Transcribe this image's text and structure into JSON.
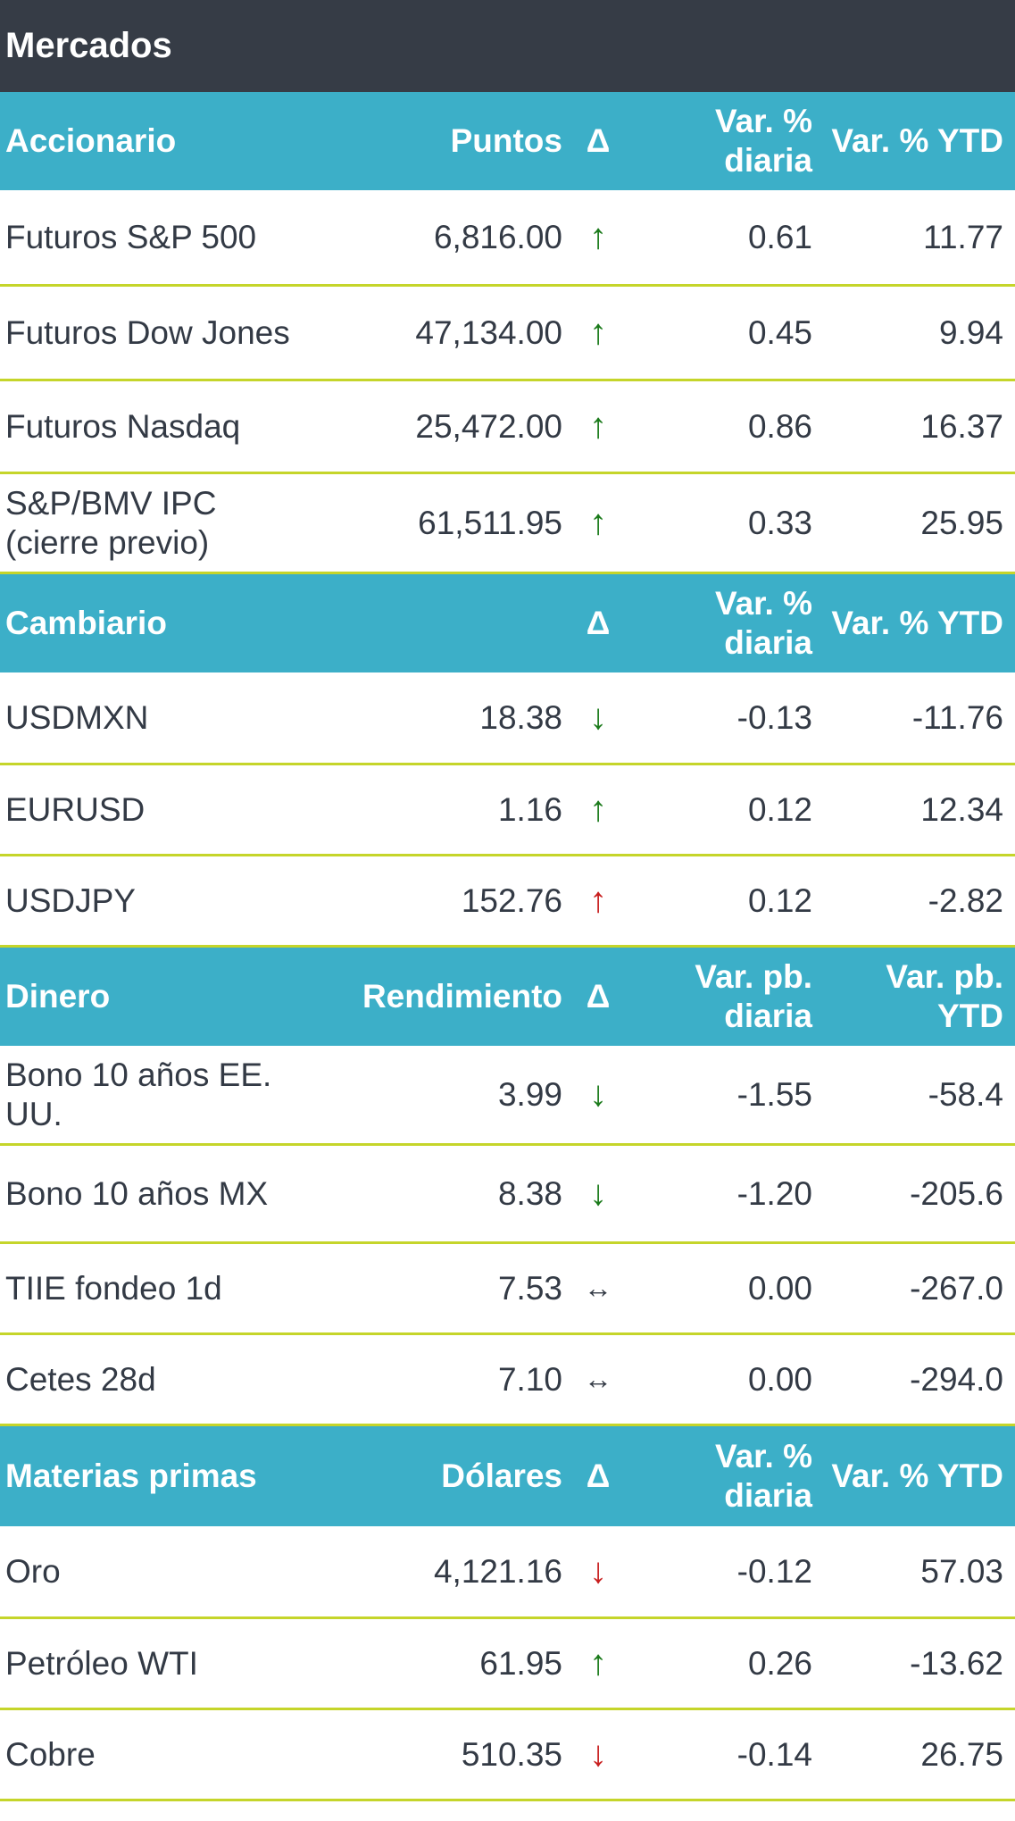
{
  "title": "Mercados",
  "arrows": {
    "up": "↑",
    "down": "↓",
    "flat": "↔"
  },
  "sections": [
    {
      "header": [
        "Accionario",
        "Puntos",
        "Δ",
        "Var. %\ndiaria",
        "Var. % YTD"
      ],
      "rows": [
        {
          "name": "Futuros S&P 500",
          "value": "6,816.00",
          "dir": "up",
          "color": "#1a7a1a",
          "d": "0.61",
          "ytd": "11.77"
        },
        {
          "name": "Futuros Dow Jones",
          "value": "47,134.00",
          "dir": "up",
          "color": "#1a7a1a",
          "d": "0.45",
          "ytd": "9.94"
        },
        {
          "name": "Futuros Nasdaq",
          "value": "25,472.00",
          "dir": "up",
          "color": "#1a7a1a",
          "d": "0.86",
          "ytd": "16.37"
        },
        {
          "name": "S&P/BMV IPC\n(cierre previo)",
          "value": "61,511.95",
          "dir": "up",
          "color": "#1a7a1a",
          "d": "0.33",
          "ytd": "25.95"
        }
      ]
    },
    {
      "header": [
        "Cambiario",
        "",
        "Δ",
        "Var. %\ndiaria",
        "Var. % YTD"
      ],
      "rows": [
        {
          "name": "USDMXN",
          "value": "18.38",
          "dir": "down",
          "color": "#1a7a1a",
          "d": "-0.13",
          "ytd": "-11.76"
        },
        {
          "name": "EURUSD",
          "value": "1.16",
          "dir": "up",
          "color": "#1a7a1a",
          "d": "0.12",
          "ytd": "12.34"
        },
        {
          "name": "USDJPY",
          "value": "152.76",
          "dir": "up",
          "color": "#c81e1e",
          "d": "0.12",
          "ytd": "-2.82"
        }
      ]
    },
    {
      "header": [
        "Dinero",
        "Rendimiento",
        "Δ",
        "Var. pb.\ndiaria",
        "Var. pb.\nYTD"
      ],
      "rows": [
        {
          "name": "Bono 10 años EE.\nUU.",
          "value": "3.99",
          "dir": "down",
          "color": "#1a7a1a",
          "d": "-1.55",
          "ytd": "-58.4"
        },
        {
          "name": "Bono 10 años MX",
          "value": "8.38",
          "dir": "down",
          "color": "#1a7a1a",
          "d": "-1.20",
          "ytd": "-205.6"
        },
        {
          "name": "TIIE fondeo 1d",
          "value": "7.53",
          "dir": "flat",
          "color": "#333a45",
          "d": "0.00",
          "ytd": "-267.0"
        },
        {
          "name": "Cetes 28d",
          "value": "7.10",
          "dir": "flat",
          "color": "#333a45",
          "d": "0.00",
          "ytd": "-294.0"
        }
      ]
    },
    {
      "header": [
        "Materias primas",
        "Dólares",
        "Δ",
        "Var. %\ndiaria",
        "Var. % YTD"
      ],
      "rows": [
        {
          "name": "Oro",
          "value": "4,121.16",
          "dir": "down",
          "color": "#c81e1e",
          "d": "-0.12",
          "ytd": "57.03"
        },
        {
          "name": "Petróleo WTI",
          "value": "61.95",
          "dir": "up",
          "color": "#1a7a1a",
          "d": "0.26",
          "ytd": "-13.62"
        },
        {
          "name": "Cobre",
          "value": "510.35",
          "dir": "down",
          "color": "#c81e1e",
          "d": "-0.14",
          "ytd": "26.75"
        }
      ]
    }
  ]
}
